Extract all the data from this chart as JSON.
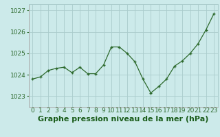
{
  "x": [
    0,
    1,
    2,
    3,
    4,
    5,
    6,
    7,
    8,
    9,
    10,
    11,
    12,
    13,
    14,
    15,
    16,
    17,
    18,
    19,
    20,
    21,
    22,
    23
  ],
  "y": [
    1023.8,
    1023.9,
    1024.2,
    1024.3,
    1024.35,
    1024.1,
    1024.35,
    1024.05,
    1024.05,
    1024.45,
    1025.3,
    1025.3,
    1025.0,
    1024.6,
    1023.8,
    1023.15,
    1023.45,
    1023.8,
    1024.4,
    1024.65,
    1025.0,
    1025.45,
    1026.1,
    1026.85
  ],
  "line_color": "#2d6a2d",
  "marker_color": "#2d6a2d",
  "bg_color": "#cceaea",
  "grid_color": "#aacccc",
  "xlabel": "Graphe pression niveau de la mer (hPa)",
  "xlabel_color": "#1a5c1a",
  "ylim": [
    1022.5,
    1027.3
  ],
  "yticks": [
    1023,
    1024,
    1025,
    1026,
    1027
  ],
  "xtick_labels": [
    "0",
    "1",
    "2",
    "3",
    "4",
    "5",
    "6",
    "7",
    "8",
    "9",
    "10",
    "11",
    "12",
    "13",
    "14",
    "15",
    "16",
    "17",
    "18",
    "19",
    "20",
    "21",
    "22",
    "23"
  ],
  "tick_color": "#2d6a2d",
  "axis_color": "#aaaaaa",
  "font_size_xlabel": 8.0,
  "font_size_tick": 6.5
}
